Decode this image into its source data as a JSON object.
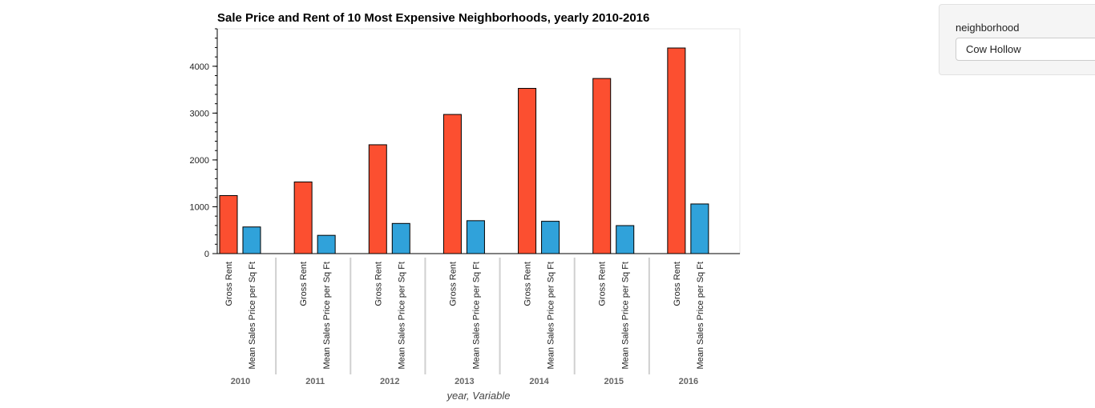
{
  "chart_data": {
    "type": "bar",
    "title": "Sale Price and Rent of 10 Most Expensive Neighborhoods, yearly 2010-2016",
    "xlabel": "year, Variable",
    "ylabel": "",
    "ylim": [
      0,
      4800
    ],
    "yticks": [
      0,
      1000,
      2000,
      3000,
      4000
    ],
    "categories": [
      "2010",
      "2011",
      "2012",
      "2013",
      "2014",
      "2015",
      "2016"
    ],
    "series": [
      {
        "name": "Gross Rent",
        "color": "#fc4f30",
        "values": [
          1239,
          1530,
          2324,
          2971,
          3528,
          3739,
          4390
        ]
      },
      {
        "name": "Mean Sales Price per Sq Ft",
        "color": "#30a2da",
        "values": [
          569,
          390,
          644,
          703,
          690,
          598,
          1060
        ]
      }
    ]
  },
  "widget": {
    "label": "neighborhood",
    "selected": "Cow Hollow"
  }
}
